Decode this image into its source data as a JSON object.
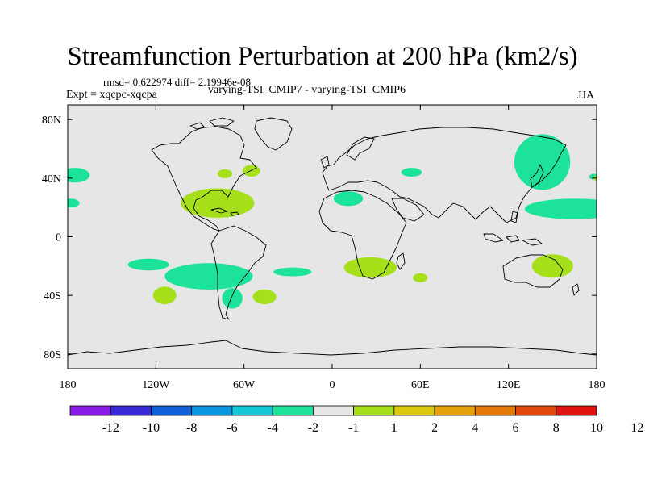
{
  "title": "Streamfunction Perturbation at 200 hPa (km2/s)",
  "stats": "rmsd= 0.622974 diff= 2.19946e-08",
  "experiment": "Expt = xqcpc-xqcpa",
  "comparison": "varying-TSI_CMIP7 - varying-TSI_CMIP6",
  "season": "JJA",
  "colors": {
    "negative_fill": "#1ce29a",
    "positive_fill": "#a5e01a",
    "background_fill": "#e6e6e6",
    "coast": "#000000"
  },
  "chart_data": {
    "type": "filled-contour-map",
    "projection": "cylindrical equidistant",
    "x_range": [
      -180,
      180
    ],
    "y_range": [
      -90,
      90
    ],
    "y_ticks": [
      {
        "value": 80,
        "label": "80N"
      },
      {
        "value": 40,
        "label": "40N"
      },
      {
        "value": 0,
        "label": "0"
      },
      {
        "value": -40,
        "label": "40S"
      },
      {
        "value": -80,
        "label": "80S"
      }
    ],
    "x_ticks": [
      {
        "value": -180,
        "label": "180"
      },
      {
        "value": -120,
        "label": "120W"
      },
      {
        "value": -60,
        "label": "60W"
      },
      {
        "value": 0,
        "label": "0"
      },
      {
        "value": 60,
        "label": "60E"
      },
      {
        "value": 120,
        "label": "120E"
      },
      {
        "value": 180,
        "label": "180"
      }
    ],
    "colorbar": {
      "colors": [
        "#8a1ae6",
        "#3a2ad6",
        "#1060d8",
        "#0a98e0",
        "#14c8d8",
        "#1ce29a",
        "#e6e6e6",
        "#a5e01a",
        "#dcc80e",
        "#e6a20a",
        "#e47a08",
        "#e04a0a",
        "#e01212"
      ],
      "labels": [
        "-12",
        "-10",
        "-8",
        "-6",
        "-4",
        "-2",
        "-1",
        "1",
        "2",
        "4",
        "6",
        "8",
        "10",
        "12"
      ]
    },
    "blobs": [
      {
        "sign": "neg",
        "lon": -175,
        "lat": 42,
        "rx": 10,
        "ry": 5
      },
      {
        "sign": "neg",
        "lon": -178,
        "lat": 23,
        "rx": 6,
        "ry": 3
      },
      {
        "sign": "neg",
        "lon": 143,
        "lat": 51,
        "rx": 19,
        "ry": 19
      },
      {
        "sign": "neg",
        "lon": 165,
        "lat": 19,
        "rx": 34,
        "ry": 7
      },
      {
        "sign": "neg",
        "lon": 178,
        "lat": 41,
        "rx": 3,
        "ry": 2
      },
      {
        "sign": "neg",
        "lon": 11,
        "lat": 26,
        "rx": 10,
        "ry": 5
      },
      {
        "sign": "neg",
        "lon": 54,
        "lat": 44,
        "rx": 7,
        "ry": 3
      },
      {
        "sign": "neg",
        "lon": -125,
        "lat": -19,
        "rx": 14,
        "ry": 4
      },
      {
        "sign": "neg",
        "lon": -84,
        "lat": -27,
        "rx": 30,
        "ry": 9
      },
      {
        "sign": "neg",
        "lon": -68,
        "lat": -42,
        "rx": 7,
        "ry": 7
      },
      {
        "sign": "neg",
        "lon": -27,
        "lat": -24,
        "rx": 13,
        "ry": 3
      },
      {
        "sign": "pos",
        "lon": -78,
        "lat": 23,
        "rx": 25,
        "ry": 10
      },
      {
        "sign": "pos",
        "lon": -55,
        "lat": 45,
        "rx": 6,
        "ry": 4
      },
      {
        "sign": "pos",
        "lon": -73,
        "lat": 43,
        "rx": 5,
        "ry": 3
      },
      {
        "sign": "pos",
        "lon": -114,
        "lat": -40,
        "rx": 8,
        "ry": 6
      },
      {
        "sign": "pos",
        "lon": -46,
        "lat": -41,
        "rx": 8,
        "ry": 5
      },
      {
        "sign": "pos",
        "lon": 26,
        "lat": -21,
        "rx": 18,
        "ry": 7
      },
      {
        "sign": "pos",
        "lon": 60,
        "lat": -28,
        "rx": 5,
        "ry": 3
      },
      {
        "sign": "pos",
        "lon": 150,
        "lat": -20,
        "rx": 14,
        "ry": 8
      },
      {
        "sign": "pos",
        "lon": 180,
        "lat": 40,
        "rx": 2,
        "ry": 2
      }
    ]
  }
}
